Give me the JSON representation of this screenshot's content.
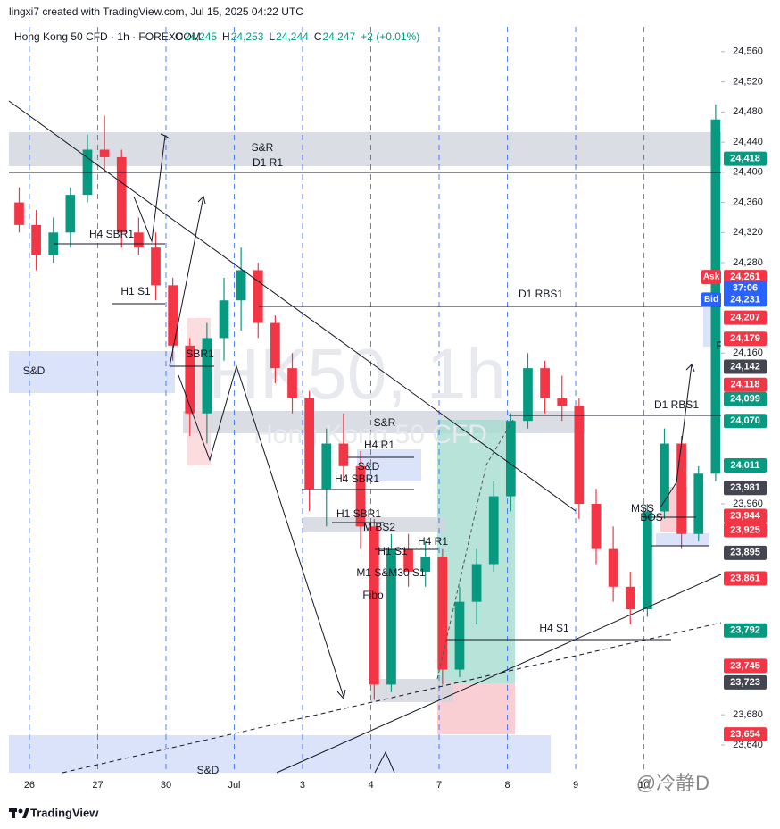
{
  "header": {
    "credit": "lingxi7 created with TradingView.com, Jul 15, 2025 04:22 UTC",
    "symbol": "Hong Kong 50 CFD · 1h · FOREXCOM",
    "ohlc": [
      {
        "key": "O",
        "value": "24,245"
      },
      {
        "key": "H",
        "value": "24,253"
      },
      {
        "key": "L",
        "value": "24,244"
      },
      {
        "key": "C",
        "value": "24,247"
      }
    ],
    "change": "+2 (+0.01%)"
  },
  "watermark": {
    "symbol": "HK50, 1h",
    "name": "Hong Kong 50 CFD"
  },
  "chart_data": {
    "type": "candlestick",
    "x": [
      -0.15,
      0.1,
      0.35,
      0.6,
      0.85,
      1.1,
      1.35,
      1.6,
      1.85,
      2.1,
      2.35,
      2.6,
      2.85,
      3.1,
      3.35,
      3.6,
      3.85,
      4.1,
      4.35,
      4.6,
      4.85,
      5.05,
      5.3,
      5.55,
      5.8,
      6.05,
      6.3,
      6.55,
      6.8,
      7.05,
      7.3,
      7.55,
      7.8,
      8.05,
      8.3,
      8.55,
      8.8,
      9.05,
      9.3,
      9.55,
      9.8,
      10.05
    ],
    "open": [
      24360,
      24330,
      24290,
      24320,
      24370,
      24430,
      24420,
      24320,
      24300,
      24250,
      24170,
      24080,
      24180,
      24230,
      24270,
      24200,
      24140,
      24100,
      23980,
      24040,
      24010,
      23930,
      23720,
      23900,
      23870,
      23890,
      23740,
      23830,
      23880,
      23970,
      24070,
      24140,
      24100,
      24090,
      23960,
      23900,
      23850,
      23820,
      23950,
      24040,
      23920,
      24000
    ],
    "high": [
      24380,
      24350,
      24340,
      24380,
      24450,
      24475,
      24430,
      24340,
      24320,
      24260,
      24180,
      24200,
      24260,
      24300,
      24280,
      24210,
      24160,
      24110,
      24060,
      24080,
      24030,
      23940,
      23920,
      23920,
      23910,
      23900,
      23850,
      23900,
      23990,
      24080,
      24160,
      24150,
      24130,
      24100,
      23980,
      23930,
      23870,
      23960,
      24060,
      24050,
      24010,
      24490
    ],
    "low": [
      24320,
      24270,
      24280,
      24300,
      24360,
      24400,
      24300,
      24290,
      24230,
      24150,
      24050,
      24040,
      24150,
      24190,
      24180,
      24120,
      24080,
      23950,
      23930,
      23990,
      23900,
      23700,
      23710,
      23850,
      23850,
      23720,
      23730,
      23800,
      23870,
      23950,
      24060,
      24080,
      24070,
      23940,
      23880,
      23830,
      23800,
      23810,
      23940,
      23900,
      23910,
      23990
    ],
    "close": [
      24330,
      24290,
      24320,
      24370,
      24430,
      24420,
      24320,
      24300,
      24250,
      24170,
      24080,
      24180,
      24230,
      24270,
      24200,
      24140,
      24100,
      23980,
      24040,
      24010,
      23930,
      23720,
      23900,
      23870,
      23890,
      23740,
      23830,
      23880,
      23970,
      24070,
      24140,
      24100,
      24090,
      23960,
      23900,
      23850,
      23820,
      23950,
      24040,
      23920,
      24000,
      24470
    ],
    "up_color": "#089981",
    "down_color": "#f23645",
    "xlim": [
      -0.3,
      10.13
    ],
    "xticks": [
      {
        "value": 0,
        "label": "26"
      },
      {
        "value": 1,
        "label": "27"
      },
      {
        "value": 2,
        "label": "30"
      },
      {
        "value": 3,
        "label": "Jul"
      },
      {
        "value": 4,
        "label": "3"
      },
      {
        "value": 5,
        "label": "4"
      },
      {
        "value": 6,
        "label": "7"
      },
      {
        "value": 7,
        "label": "8"
      },
      {
        "value": 8,
        "label": "9"
      },
      {
        "value": 9,
        "label": "10"
      }
    ],
    "ylim": [
      23602,
      24593
    ],
    "yticks": [
      {
        "value": 24560,
        "label": "24,560"
      },
      {
        "value": 24520,
        "label": "24,520"
      },
      {
        "value": 24480,
        "label": "24,480"
      },
      {
        "value": 24440,
        "label": "24,440"
      },
      {
        "value": 24400,
        "label": "24,400"
      },
      {
        "value": 24360,
        "label": "24,360"
      },
      {
        "value": 24320,
        "label": "24,320"
      },
      {
        "value": 24280,
        "label": "24,280"
      },
      {
        "value": 24160,
        "label": "24,160"
      },
      {
        "value": 23960,
        "label": "23,960"
      },
      {
        "value": 23680,
        "label": "23,680"
      },
      {
        "value": 23640,
        "label": "23,640"
      }
    ],
    "grid": true,
    "price_tags": [
      {
        "value": 24418,
        "label": "24,418",
        "color": "#089981"
      },
      {
        "value": 24261,
        "label": "24,261",
        "color": "#f23645",
        "side": "Ask"
      },
      {
        "value": 24246,
        "label": "37:06",
        "color": "#2962ff"
      },
      {
        "value": 24231,
        "label": "24,231",
        "color": "#2962ff",
        "side": "Bid"
      },
      {
        "value": 24207,
        "label": "24,207",
        "color": "#f23645"
      },
      {
        "value": 24179,
        "label": "24,179",
        "color": "#f23645"
      },
      {
        "value": 24142,
        "label": "24,142",
        "color": "#434651"
      },
      {
        "value": 24118,
        "label": "24,118",
        "color": "#f23645"
      },
      {
        "value": 24099,
        "label": "24,099",
        "color": "#089981"
      },
      {
        "value": 24070,
        "label": "24,070",
        "color": "#089981"
      },
      {
        "value": 24011,
        "label": "24,011",
        "color": "#089981"
      },
      {
        "value": 23981,
        "label": "23,981",
        "color": "#434651"
      },
      {
        "value": 23944,
        "label": "23,944",
        "color": "#f23645"
      },
      {
        "value": 23925,
        "label": "23,925",
        "color": "#f23645"
      },
      {
        "value": 23895,
        "label": "23,895",
        "color": "#434651"
      },
      {
        "value": 23861,
        "label": "23,861",
        "color": "#f23645"
      },
      {
        "value": 23792,
        "label": "23,792",
        "color": "#089981"
      },
      {
        "value": 23745,
        "label": "23,745",
        "color": "#f23645"
      },
      {
        "value": 23723,
        "label": "23,723",
        "color": "#434651"
      },
      {
        "value": 23654,
        "label": "23,654",
        "color": "#f23645"
      }
    ],
    "annotations": [
      "S&R",
      "D1 R1",
      "H4 SBR1",
      "H1 S1",
      "SBR1",
      "S&D",
      "D1 RBS1",
      "S&R",
      "H4 R1",
      "S&D",
      "H4 SBR1",
      "H1 SBR1",
      "M BS2",
      "H4 R1",
      "H1 S1",
      "M1 S&M30 S1",
      "Fibo",
      "H4 S1",
      "D1 RBS1",
      "MSS",
      "BOS",
      "F",
      "S&D"
    ]
  },
  "footer": {
    "brand": "TradingView",
    "signature": "@冷静D"
  }
}
